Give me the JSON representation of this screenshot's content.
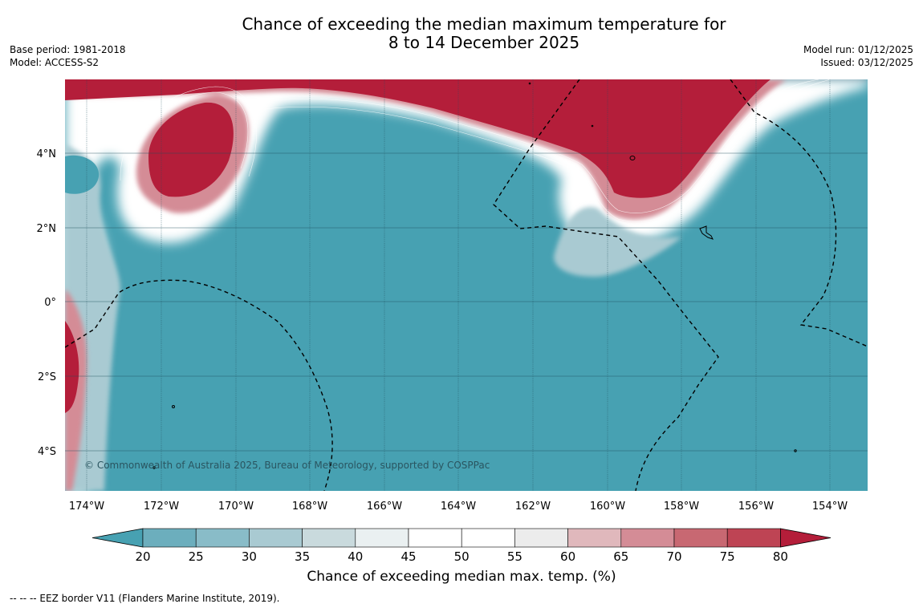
{
  "title": {
    "line1": "Chance of exceeding the median maximum temperature for",
    "line2": "8 to 14 December 2025"
  },
  "meta_left": {
    "base_period": "Base period: 1981-2018",
    "model": "Model: ACCESS-S2"
  },
  "meta_right": {
    "model_run": "Model run: 01/12/2025",
    "issued": "Issued: 03/12/2025"
  },
  "map": {
    "lat_labels": [
      "4°N",
      "2°N",
      "0°",
      "2°S",
      "4°S"
    ],
    "lon_labels": [
      "174°W",
      "172°W",
      "170°W",
      "168°W",
      "166°W",
      "164°W",
      "162°W",
      "160°W",
      "158°W",
      "156°W",
      "154°W"
    ],
    "credit": "© Commonwealth of Australia 2025, Bureau of Meteorology, supported by COSPPac",
    "colors": {
      "below": "#47a1b2",
      "neutral": "#ffffff",
      "above": "#b41e3a"
    }
  },
  "colorbar": {
    "ticks": [
      "20",
      "25",
      "30",
      "35",
      "40",
      "45",
      "50",
      "55",
      "60",
      "65",
      "70",
      "75",
      "80"
    ],
    "colors": [
      "#47a1b2",
      "#6caebd",
      "#89bcc8",
      "#a9cad2",
      "#c9dadd",
      "#eaf0f1",
      "#ffffff",
      "#ffffff",
      "#ececec",
      "#e0b8bc",
      "#d48c96",
      "#c86872",
      "#be4454",
      "#b41e3a"
    ],
    "label": "Chance of exceeding median max. temp. (%)"
  },
  "footer": "--  --  -- EEZ border V11 (Flanders Marine Institute, 2019)."
}
